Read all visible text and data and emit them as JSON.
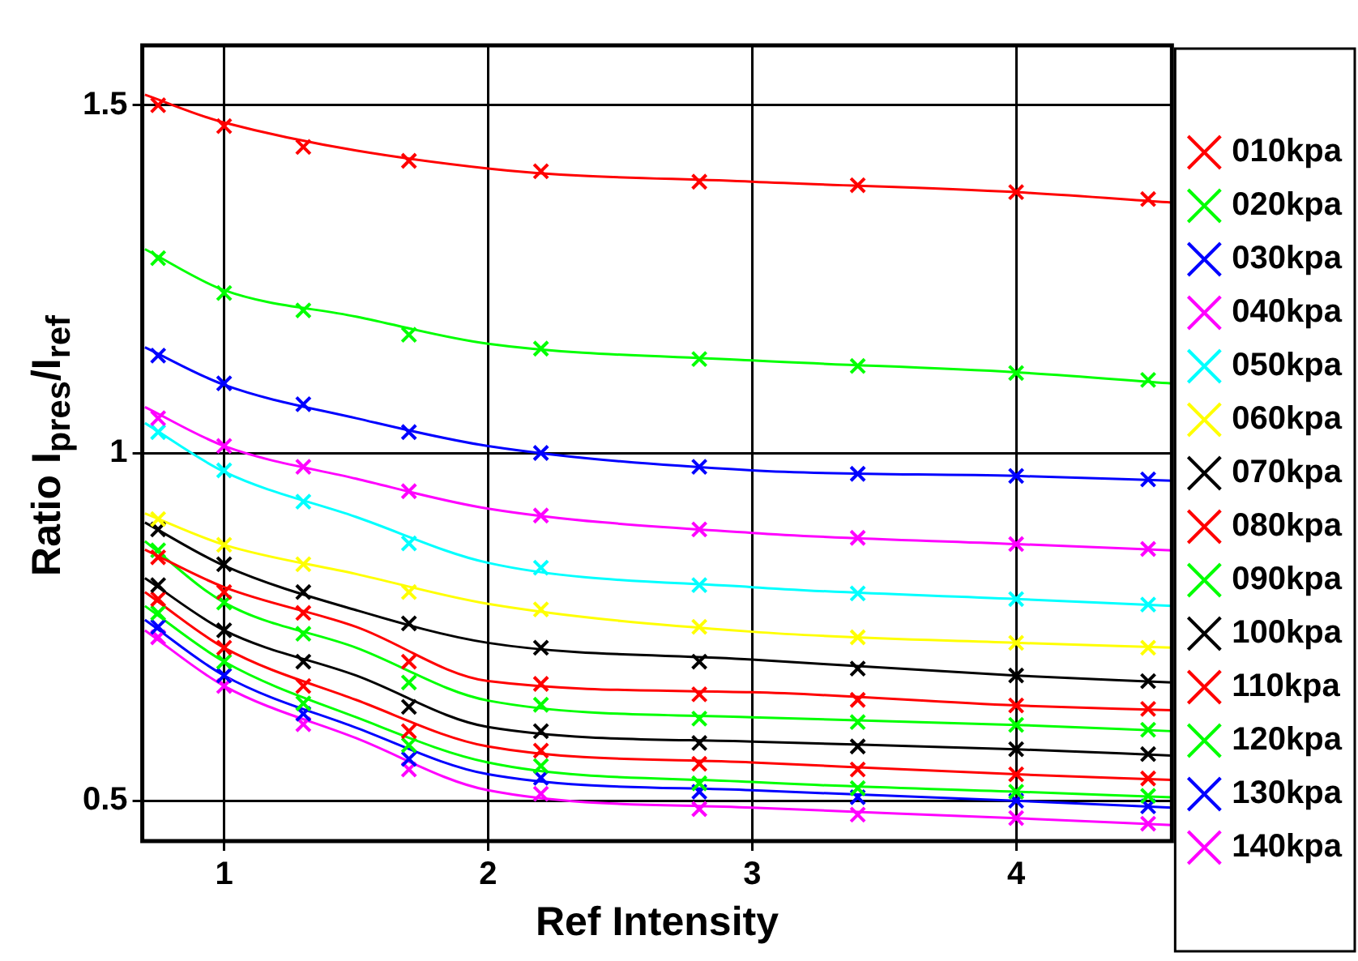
{
  "chart_data": {
    "type": "scatter",
    "xlabel": "Ref Intensity",
    "ylabel": "Ratio I$_{pres}$/I$_{ref}$",
    "xlim": [
      0.69,
      4.59
    ],
    "ylim": [
      0.442,
      1.586
    ],
    "xticks": [
      1,
      2,
      3,
      4
    ],
    "yticks": [
      0.5,
      1,
      1.5
    ],
    "grid": true,
    "legend": "right",
    "marker": "cross",
    "x": [
      0.75,
      1,
      1.3,
      1.7,
      2.2,
      2.8,
      3.4,
      4,
      4.5
    ],
    "series": [
      {
        "name": "010kpa",
        "color": "#ff0000",
        "values": [
          1.5,
          1.47,
          1.44,
          1.42,
          1.405,
          1.39,
          1.385,
          1.375,
          1.365
        ]
      },
      {
        "name": "020kpa",
        "color": "#00ff00",
        "values": [
          1.28,
          1.23,
          1.205,
          1.17,
          1.15,
          1.135,
          1.125,
          1.115,
          1.105
        ]
      },
      {
        "name": "030kpa",
        "color": "#0000ff",
        "values": [
          1.14,
          1.1,
          1.07,
          1.03,
          1.0,
          0.98,
          0.97,
          0.967,
          0.962
        ]
      },
      {
        "name": "040kpa",
        "color": "#ff00ff",
        "values": [
          1.05,
          1.01,
          0.98,
          0.945,
          0.91,
          0.89,
          0.878,
          0.869,
          0.862
        ]
      },
      {
        "name": "050kpa",
        "color": "#00ffff",
        "values": [
          1.03,
          0.975,
          0.93,
          0.87,
          0.835,
          0.81,
          0.798,
          0.79,
          0.782
        ]
      },
      {
        "name": "060kpa",
        "color": "#ffff00",
        "values": [
          0.905,
          0.868,
          0.84,
          0.8,
          0.775,
          0.75,
          0.735,
          0.727,
          0.72
        ]
      },
      {
        "name": "070kpa",
        "color": "#000000",
        "values": [
          0.89,
          0.84,
          0.8,
          0.755,
          0.72,
          0.7,
          0.69,
          0.68,
          0.672
        ]
      },
      {
        "name": "080kpa",
        "color": "#ff0000",
        "values": [
          0.85,
          0.8,
          0.77,
          0.7,
          0.668,
          0.653,
          0.645,
          0.637,
          0.632
        ]
      },
      {
        "name": "090kpa",
        "color": "#00ff00",
        "values": [
          0.86,
          0.785,
          0.74,
          0.67,
          0.638,
          0.618,
          0.613,
          0.609,
          0.602
        ]
      },
      {
        "name": "100kpa",
        "color": "#000000",
        "values": [
          0.81,
          0.745,
          0.7,
          0.635,
          0.6,
          0.583,
          0.578,
          0.574,
          0.567
        ]
      },
      {
        "name": "110kpa",
        "color": "#ff0000",
        "values": [
          0.79,
          0.72,
          0.665,
          0.6,
          0.572,
          0.553,
          0.545,
          0.538,
          0.532
        ]
      },
      {
        "name": "120kpa",
        "color": "#00ff00",
        "values": [
          0.77,
          0.7,
          0.64,
          0.58,
          0.55,
          0.525,
          0.518,
          0.513,
          0.507
        ]
      },
      {
        "name": "130kpa",
        "color": "#0000ff",
        "values": [
          0.75,
          0.68,
          0.625,
          0.56,
          0.533,
          0.513,
          0.505,
          0.5,
          0.492
        ]
      },
      {
        "name": "140kpa",
        "color": "#ff00ff",
        "values": [
          0.735,
          0.665,
          0.61,
          0.545,
          0.51,
          0.488,
          0.48,
          0.475,
          0.467
        ]
      },
      {
        "type": "line",
        "marker": "none",
        "color": "#ff0000",
        "x": [
          0.7,
          1,
          2,
          3,
          4,
          4.59
        ],
        "values": [
          1.515,
          1.475,
          1.409,
          1.39,
          1.375,
          1.36
        ]
      },
      {
        "type": "line",
        "marker": "none",
        "color": "#00ff00",
        "x": [
          0.7,
          1,
          1.5,
          2,
          3,
          4,
          4.59
        ],
        "values": [
          1.293,
          1.234,
          1.196,
          1.157,
          1.133,
          1.116,
          1.1
        ]
      },
      {
        "type": "line",
        "marker": "none",
        "color": "#0000ff",
        "x": [
          0.7,
          1,
          1.5,
          2,
          3,
          4,
          4.59
        ],
        "values": [
          1.152,
          1.098,
          1.05,
          1.01,
          0.975,
          0.967,
          0.96
        ]
      },
      {
        "type": "line",
        "marker": "none",
        "color": "#ff00ff",
        "x": [
          0.7,
          1,
          1.5,
          2,
          3,
          4,
          4.59
        ],
        "values": [
          1.066,
          1.01,
          0.963,
          0.92,
          0.885,
          0.869,
          0.86
        ]
      },
      {
        "type": "line",
        "marker": "none",
        "color": "#00ffff",
        "x": [
          0.7,
          1,
          1.5,
          2,
          3,
          4,
          4.59
        ],
        "values": [
          1.043,
          0.973,
          0.908,
          0.842,
          0.807,
          0.79,
          0.78
        ]
      },
      {
        "type": "line",
        "marker": "none",
        "color": "#ffff00",
        "x": [
          0.7,
          1,
          1.5,
          2,
          3,
          4,
          4.59
        ],
        "values": [
          0.913,
          0.868,
          0.826,
          0.783,
          0.743,
          0.727,
          0.72
        ]
      },
      {
        "type": "line",
        "marker": "none",
        "color": "#000000",
        "x": [
          0.7,
          1,
          1.5,
          2,
          3,
          4,
          4.59
        ],
        "values": [
          0.9,
          0.838,
          0.774,
          0.727,
          0.703,
          0.68,
          0.67
        ]
      },
      {
        "type": "line",
        "marker": "none",
        "color": "#ff0000",
        "x": [
          0.7,
          1,
          1.5,
          2,
          3,
          4,
          4.59
        ],
        "values": [
          0.861,
          0.807,
          0.75,
          0.672,
          0.656,
          0.637,
          0.63
        ]
      },
      {
        "type": "line",
        "marker": "none",
        "color": "#00ff00",
        "x": [
          0.7,
          1,
          1.5,
          2,
          3,
          4,
          4.59
        ],
        "values": [
          0.873,
          0.785,
          0.72,
          0.644,
          0.62,
          0.609,
          0.6
        ]
      },
      {
        "type": "line",
        "marker": "none",
        "color": "#000000",
        "x": [
          0.7,
          1,
          1.5,
          2,
          3,
          4,
          4.59
        ],
        "values": [
          0.82,
          0.745,
          0.68,
          0.606,
          0.585,
          0.574,
          0.565
        ]
      },
      {
        "type": "line",
        "marker": "none",
        "color": "#ff0000",
        "x": [
          0.7,
          1,
          1.5,
          2,
          3,
          4,
          4.59
        ],
        "values": [
          0.8,
          0.72,
          0.645,
          0.578,
          0.555,
          0.538,
          0.53
        ]
      },
      {
        "type": "line",
        "marker": "none",
        "color": "#00ff00",
        "x": [
          0.7,
          1,
          1.5,
          2,
          3,
          4,
          4.59
        ],
        "values": [
          0.78,
          0.7,
          0.62,
          0.555,
          0.527,
          0.513,
          0.505
        ]
      },
      {
        "type": "line",
        "marker": "none",
        "color": "#0000ff",
        "x": [
          0.7,
          1,
          1.5,
          2,
          3,
          4,
          4.59
        ],
        "values": [
          0.76,
          0.68,
          0.605,
          0.538,
          0.515,
          0.5,
          0.49
        ]
      },
      {
        "type": "line",
        "marker": "none",
        "color": "#ff00ff",
        "x": [
          0.7,
          1,
          1.5,
          2,
          3,
          4,
          4.59
        ],
        "values": [
          0.745,
          0.665,
          0.59,
          0.515,
          0.49,
          0.475,
          0.465
        ]
      }
    ]
  }
}
